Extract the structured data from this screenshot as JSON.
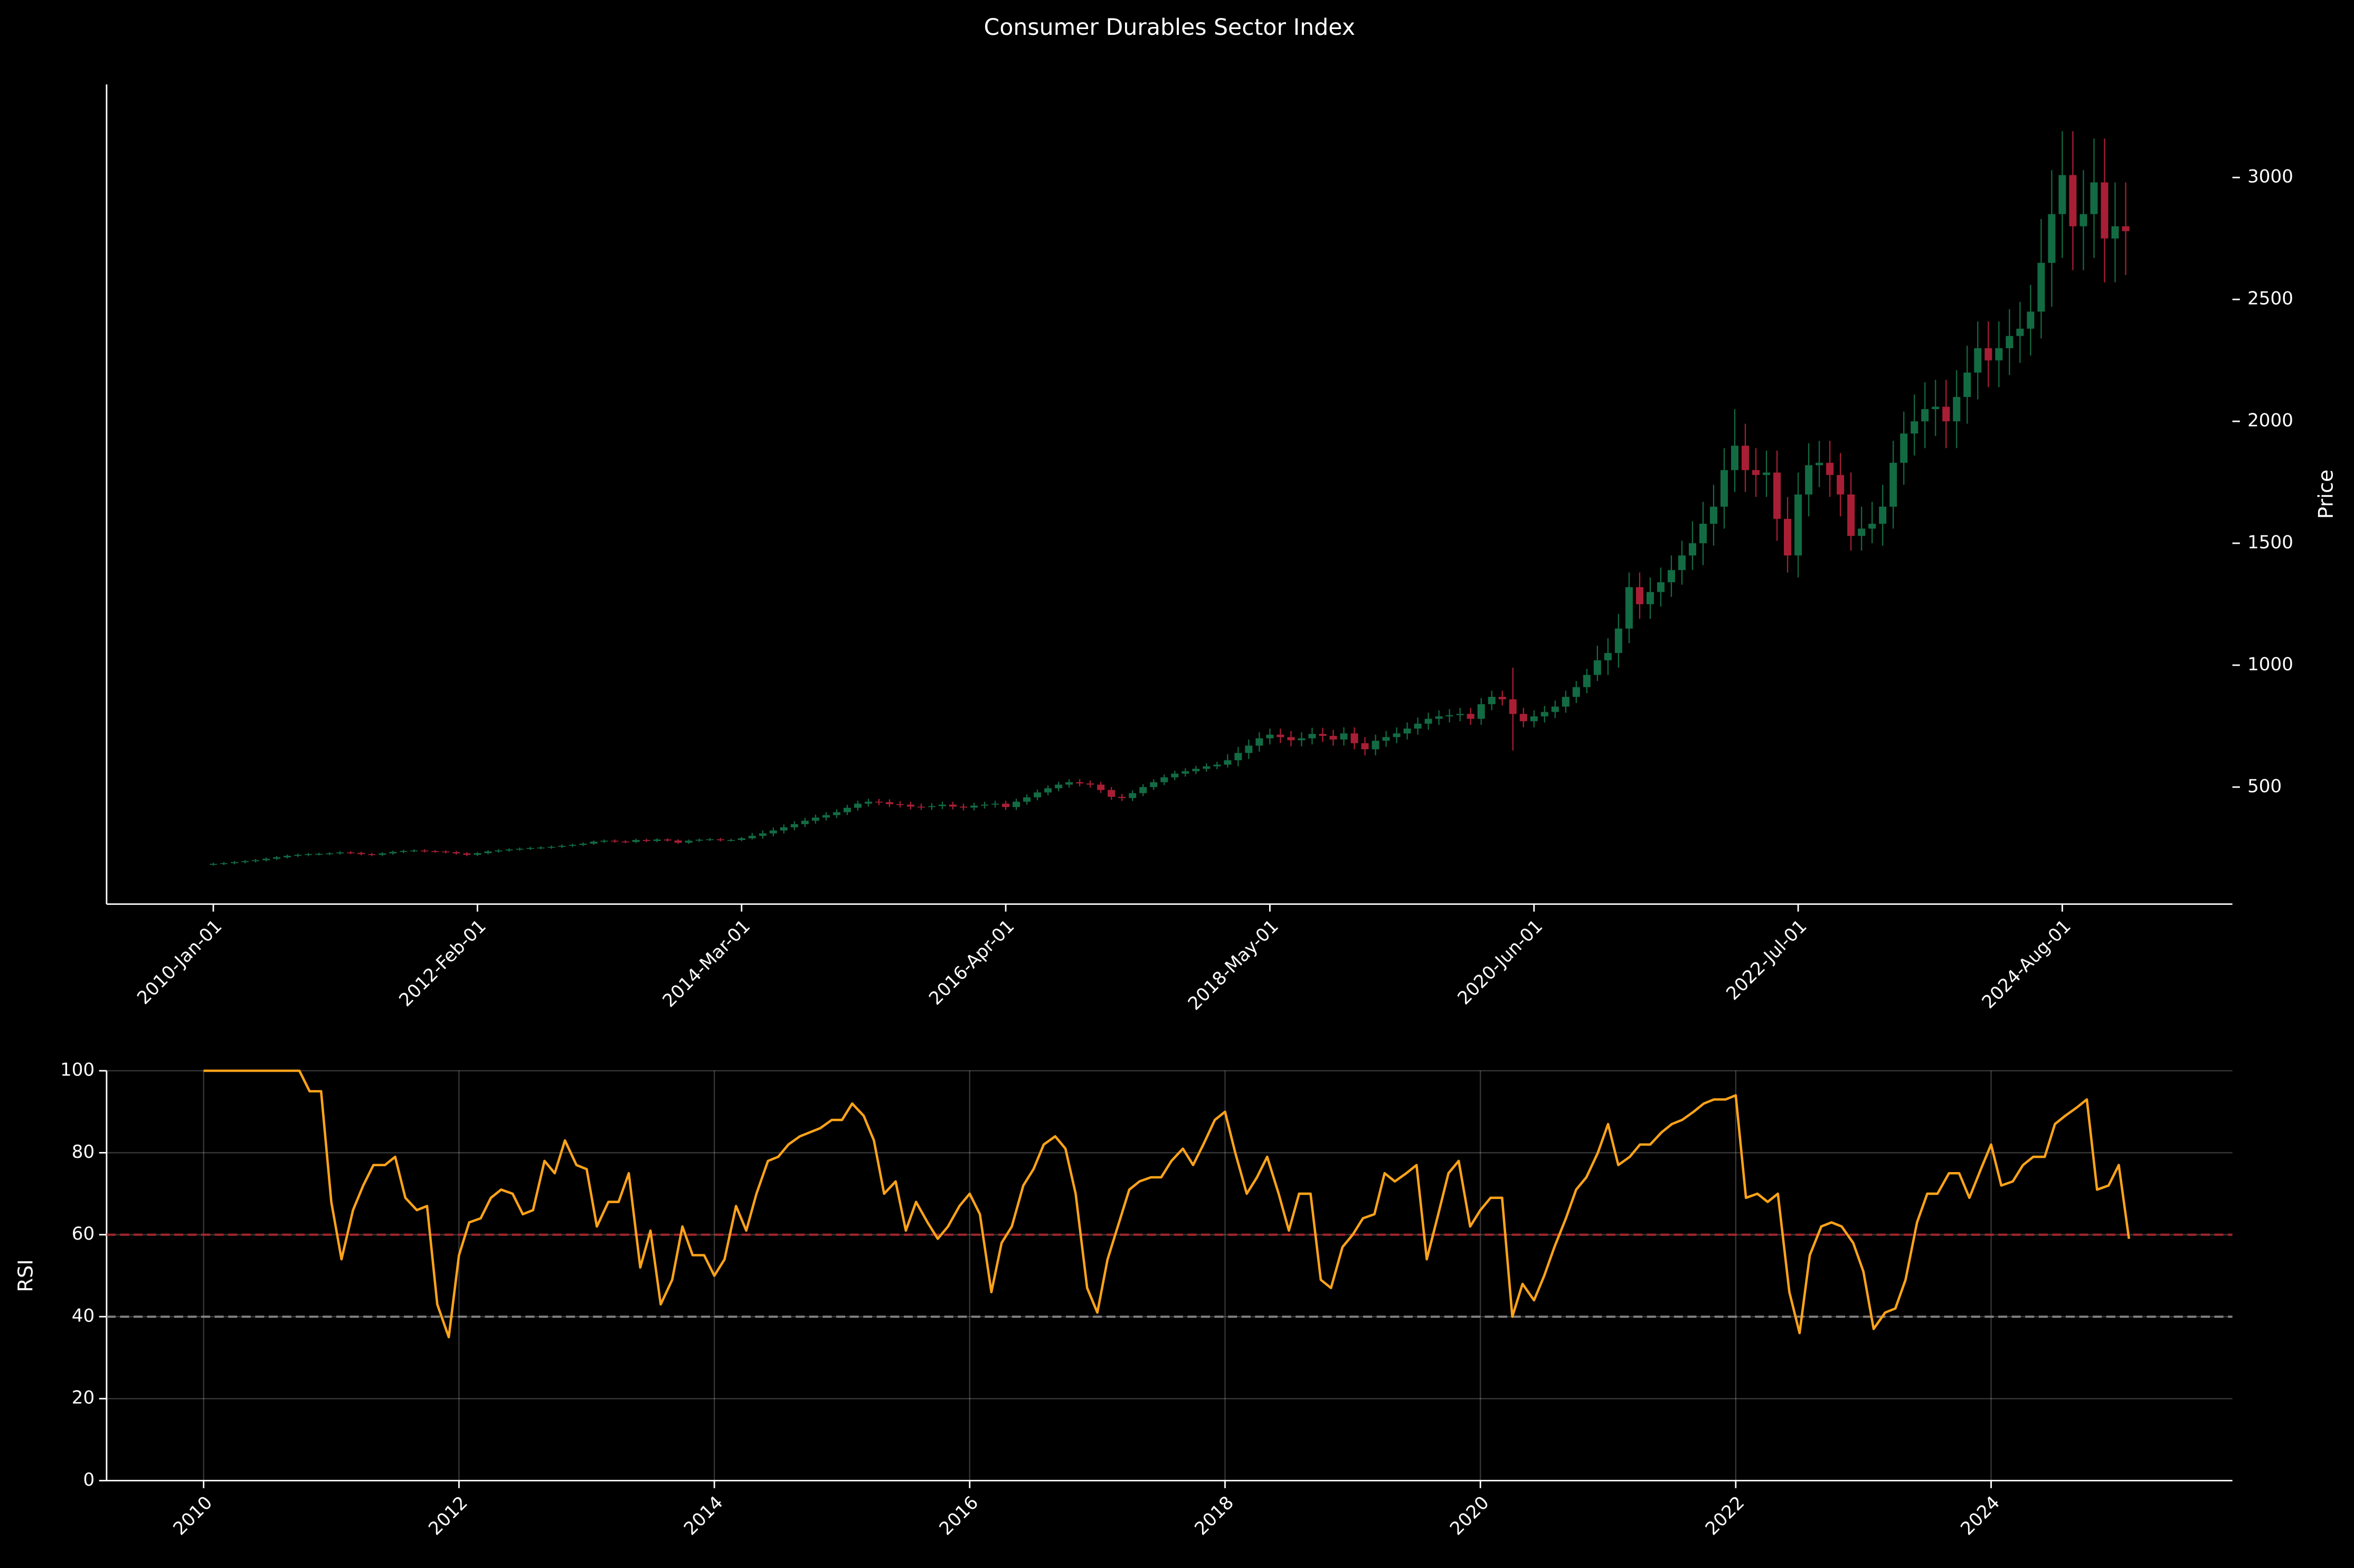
{
  "chart_data": [
    {
      "type": "candlestick",
      "title": "Consumer Durables Sector Index",
      "ylabel": "Price",
      "yaxis_side": "right",
      "up_color": "#136b43",
      "down_color": "#a81f35",
      "ylim": [
        20,
        3382
      ],
      "yticks": [
        500,
        1000,
        1500,
        2000,
        2500,
        3000
      ],
      "categories": [
        "2010-Jan-01",
        null,
        null,
        null,
        null,
        null,
        null,
        null,
        null,
        null,
        null,
        null,
        null,
        null,
        null,
        null,
        null,
        null,
        null,
        null,
        null,
        null,
        null,
        null,
        null,
        "2012-Feb-01",
        null,
        null,
        null,
        null,
        null,
        null,
        null,
        null,
        null,
        null,
        null,
        null,
        null,
        null,
        null,
        null,
        null,
        null,
        null,
        null,
        null,
        null,
        null,
        null,
        "2014-Mar-01",
        null,
        null,
        null,
        null,
        null,
        null,
        null,
        null,
        null,
        null,
        null,
        null,
        null,
        null,
        null,
        null,
        null,
        null,
        null,
        null,
        null,
        null,
        null,
        null,
        "2016-Apr-01",
        null,
        null,
        null,
        null,
        null,
        null,
        null,
        null,
        null,
        null,
        null,
        null,
        null,
        null,
        null,
        null,
        null,
        null,
        null,
        null,
        null,
        null,
        null,
        null,
        "2018-May-01",
        null,
        null,
        null,
        null,
        null,
        null,
        null,
        null,
        null,
        null,
        null,
        null,
        null,
        null,
        null,
        null,
        null,
        null,
        null,
        null,
        null,
        null,
        null,
        null,
        "2020-Jun-01",
        null,
        null,
        null,
        null,
        null,
        null,
        null,
        null,
        null,
        null,
        null,
        null,
        null,
        null,
        null,
        null,
        null,
        null,
        null,
        null,
        null,
        null,
        null,
        null,
        "2022-Jul-01",
        null,
        null,
        null,
        null,
        null,
        null,
        null,
        null,
        null,
        null,
        null,
        null,
        null,
        null,
        null,
        null,
        null,
        null,
        null,
        null,
        null,
        null,
        null,
        null,
        "2024-Aug-01",
        null,
        null,
        null,
        null,
        null,
        null
      ],
      "open": [
        183,
        185,
        188,
        192,
        196,
        200,
        206,
        212,
        218,
        222,
        225,
        226,
        228,
        232,
        230,
        225,
        222,
        228,
        234,
        238,
        240,
        237,
        236,
        233,
        228,
        222,
        229,
        236,
        240,
        244,
        247,
        250,
        252,
        255,
        259,
        263,
        268,
        276,
        280,
        277,
        275,
        283,
        279,
        285,
        281,
        272,
        280,
        284,
        286,
        282,
        283,
        290,
        300,
        310,
        322,
        335,
        348,
        362,
        375,
        385,
        397,
        415,
        432,
        440,
        438,
        430,
        428,
        420,
        418,
        422,
        428,
        420,
        416,
        424,
        428,
        432,
        418,
        440,
        458,
        478,
        495,
        510,
        520,
        515,
        510,
        488,
        460,
        455,
        475,
        500,
        520,
        540,
        555,
        565,
        575,
        585,
        592,
        610,
        640,
        670,
        700,
        715,
        705,
        692,
        700,
        718,
        710,
        695,
        720,
        680,
        655,
        690,
        705,
        720,
        740,
        760,
        780,
        790,
        795,
        800,
        780,
        840,
        870,
        860,
        800,
        770,
        790,
        808,
        830,
        870,
        910,
        960,
        1020,
        1050,
        1150,
        1320,
        1250,
        1300,
        1340,
        1390,
        1450,
        1500,
        1580,
        1650,
        1800,
        1900,
        1800,
        1780,
        1790,
        1600,
        1450,
        1700,
        1820,
        1830,
        1780,
        1700,
        1530,
        1560,
        1580,
        1650,
        1830,
        1950,
        2000,
        2050,
        2060,
        2000,
        2100,
        2200,
        2300,
        2250,
        2300,
        2350,
        2380,
        2450,
        2650,
        2850,
        3010,
        2800,
        2850,
        2980,
        2750,
        2800
      ],
      "high": [
        190,
        193,
        197,
        201,
        205,
        211,
        217,
        223,
        227,
        230,
        231,
        233,
        237,
        237,
        235,
        230,
        233,
        239,
        243,
        245,
        245,
        242,
        241,
        238,
        233,
        234,
        241,
        245,
        249,
        252,
        255,
        257,
        260,
        264,
        268,
        273,
        281,
        285,
        285,
        282,
        288,
        288,
        290,
        290,
        286,
        285,
        289,
        291,
        291,
        288,
        295,
        312,
        322,
        334,
        347,
        360,
        374,
        387,
        397,
        409,
        427,
        444,
        452,
        452,
        450,
        442,
        440,
        432,
        434,
        440,
        440,
        432,
        436,
        440,
        444,
        444,
        452,
        470,
        490,
        507,
        522,
        532,
        532,
        527,
        522,
        500,
        472,
        487,
        512,
        532,
        552,
        567,
        577,
        587,
        597,
        604,
        635,
        665,
        695,
        725,
        740,
        740,
        730,
        725,
        743,
        743,
        735,
        745,
        745,
        705,
        715,
        730,
        745,
        765,
        785,
        805,
        815,
        820,
        825,
        825,
        865,
        895,
        895,
        990,
        825,
        815,
        833,
        855,
        895,
        935,
        985,
        1080,
        1110,
        1210,
        1380,
        1380,
        1360,
        1400,
        1450,
        1510,
        1590,
        1670,
        1740,
        1890,
        2050,
        1990,
        1890,
        1880,
        1880,
        1690,
        1790,
        1910,
        1920,
        1920,
        1870,
        1790,
        1650,
        1670,
        1740,
        1920,
        2040,
        2110,
        2160,
        2170,
        2170,
        2210,
        2310,
        2410,
        2410,
        2410,
        2460,
        2490,
        2560,
        2830,
        3030,
        3190,
        3190,
        3030,
        3160,
        3160,
        2980,
        2980
      ],
      "low": [
        178,
        180,
        183,
        187,
        191,
        195,
        201,
        207,
        213,
        217,
        220,
        221,
        223,
        225,
        220,
        217,
        217,
        223,
        229,
        233,
        232,
        231,
        228,
        223,
        217,
        217,
        224,
        231,
        235,
        239,
        242,
        245,
        247,
        250,
        254,
        258,
        263,
        271,
        272,
        270,
        270,
        274,
        274,
        276,
        267,
        267,
        275,
        279,
        277,
        277,
        278,
        285,
        288,
        298,
        310,
        323,
        336,
        350,
        363,
        373,
        385,
        403,
        420,
        426,
        418,
        416,
        408,
        406,
        406,
        410,
        408,
        404,
        404,
        412,
        416,
        406,
        406,
        428,
        446,
        466,
        483,
        498,
        503,
        498,
        476,
        448,
        443,
        443,
        463,
        488,
        508,
        528,
        543,
        553,
        563,
        573,
        580,
        585,
        615,
        645,
        675,
        680,
        667,
        667,
        675,
        685,
        670,
        670,
        655,
        630,
        630,
        665,
        680,
        695,
        715,
        735,
        755,
        765,
        770,
        755,
        755,
        815,
        835,
        650,
        745,
        745,
        765,
        783,
        805,
        845,
        885,
        935,
        960,
        990,
        1090,
        1190,
        1190,
        1240,
        1280,
        1330,
        1390,
        1410,
        1490,
        1560,
        1710,
        1710,
        1690,
        1690,
        1510,
        1380,
        1360,
        1610,
        1730,
        1690,
        1610,
        1470,
        1470,
        1500,
        1490,
        1560,
        1740,
        1860,
        1890,
        1940,
        1890,
        1890,
        1990,
        2090,
        2140,
        2140,
        2190,
        2240,
        2270,
        2340,
        2470,
        2670,
        2620,
        2620,
        2670,
        2570,
        2570,
        2600
      ],
      "close": [
        185,
        188,
        192,
        196,
        200,
        206,
        212,
        218,
        222,
        225,
        226,
        228,
        232,
        230,
        225,
        222,
        228,
        234,
        238,
        240,
        237,
        236,
        233,
        228,
        222,
        229,
        236,
        240,
        244,
        247,
        250,
        252,
        255,
        259,
        263,
        268,
        276,
        280,
        277,
        275,
        283,
        279,
        285,
        281,
        272,
        280,
        284,
        286,
        282,
        283,
        290,
        300,
        310,
        322,
        335,
        348,
        362,
        375,
        385,
        397,
        415,
        432,
        440,
        438,
        430,
        428,
        420,
        418,
        422,
        428,
        420,
        416,
        424,
        428,
        432,
        418,
        440,
        458,
        478,
        495,
        510,
        520,
        515,
        510,
        488,
        460,
        455,
        475,
        500,
        520,
        540,
        555,
        565,
        575,
        585,
        592,
        610,
        640,
        670,
        700,
        715,
        705,
        692,
        700,
        718,
        710,
        695,
        720,
        680,
        655,
        690,
        705,
        720,
        740,
        760,
        780,
        790,
        795,
        800,
        780,
        840,
        870,
        860,
        800,
        770,
        790,
        808,
        830,
        870,
        910,
        960,
        1020,
        1050,
        1150,
        1320,
        1250,
        1300,
        1340,
        1390,
        1450,
        1500,
        1580,
        1650,
        1800,
        1900,
        1800,
        1780,
        1790,
        1600,
        1450,
        1700,
        1820,
        1830,
        1780,
        1700,
        1530,
        1560,
        1580,
        1650,
        1830,
        1950,
        2000,
        2050,
        2060,
        2000,
        2100,
        2200,
        2300,
        2250,
        2300,
        2350,
        2380,
        2450,
        2650,
        2850,
        3010,
        2800,
        2850,
        2980,
        2750,
        2800,
        2780
      ]
    },
    {
      "type": "line",
      "ylabel": "RSI",
      "color": "#ffa31a",
      "grid": true,
      "xlim": [
        2009.24,
        2025.89
      ],
      "xticks": [
        2010,
        2012,
        2014,
        2016,
        2018,
        2020,
        2022,
        2024
      ],
      "ylim": [
        0,
        100
      ],
      "yticks": [
        0,
        20,
        40,
        60,
        80,
        100
      ],
      "reference_lines": [
        {
          "value": 60,
          "color": "#b3262a"
        },
        {
          "value": 40,
          "color": "#8c8c8c"
        }
      ],
      "x": [
        2010,
        2010.08,
        2010.17,
        2010.25,
        2010.33,
        2010.42,
        2010.5,
        2010.58,
        2010.67,
        2010.75,
        2010.83,
        2010.92,
        2011,
        2011.08,
        2011.17,
        2011.25,
        2011.33,
        2011.42,
        2011.5,
        2011.58,
        2011.67,
        2011.75,
        2011.83,
        2011.92,
        2012,
        2012.08,
        2012.17,
        2012.25,
        2012.33,
        2012.42,
        2012.5,
        2012.58,
        2012.67,
        2012.75,
        2012.83,
        2012.92,
        2013,
        2013.08,
        2013.17,
        2013.25,
        2013.33,
        2013.42,
        2013.5,
        2013.58,
        2013.67,
        2013.75,
        2013.83,
        2013.92,
        2014,
        2014.08,
        2014.17,
        2014.25,
        2014.33,
        2014.42,
        2014.5,
        2014.58,
        2014.67,
        2014.75,
        2014.83,
        2014.92,
        2015,
        2015.08,
        2015.17,
        2015.25,
        2015.33,
        2015.42,
        2015.5,
        2015.58,
        2015.67,
        2015.75,
        2015.83,
        2015.92,
        2016,
        2016.08,
        2016.17,
        2016.25,
        2016.33,
        2016.42,
        2016.5,
        2016.58,
        2016.67,
        2016.75,
        2016.83,
        2016.92,
        2017,
        2017.08,
        2017.17,
        2017.25,
        2017.33,
        2017.42,
        2017.5,
        2017.58,
        2017.67,
        2017.75,
        2017.83,
        2017.92,
        2018,
        2018.08,
        2018.17,
        2018.25,
        2018.33,
        2018.42,
        2018.5,
        2018.58,
        2018.67,
        2018.75,
        2018.83,
        2018.92,
        2019,
        2019.08,
        2019.17,
        2019.25,
        2019.33,
        2019.42,
        2019.5,
        2019.58,
        2019.67,
        2019.75,
        2019.83,
        2019.92,
        2020,
        2020.08,
        2020.17,
        2020.25,
        2020.33,
        2020.42,
        2020.5,
        2020.58,
        2020.67,
        2020.75,
        2020.83,
        2020.92,
        2021,
        2021.08,
        2021.17,
        2021.25,
        2021.33,
        2021.42,
        2021.5,
        2021.58,
        2021.67,
        2021.75,
        2021.83,
        2021.92,
        2022,
        2022.08,
        2022.17,
        2022.25,
        2022.33,
        2022.42,
        2022.5,
        2022.58,
        2022.67,
        2022.75,
        2022.83,
        2022.92,
        2023,
        2023.08,
        2023.17,
        2023.25,
        2023.33,
        2023.42,
        2023.5,
        2023.58,
        2023.67,
        2023.75,
        2023.83,
        2023.92,
        2024,
        2024.08,
        2024.17,
        2024.25,
        2024.33,
        2024.42,
        2024.5,
        2024.58,
        2024.67,
        2024.75,
        2024.83,
        2024.92,
        2025,
        2025.08
      ],
      "values": [
        100,
        100,
        100,
        100,
        100,
        100,
        100,
        100,
        100,
        100,
        95,
        95,
        68,
        54,
        66,
        72,
        77,
        77,
        79,
        69,
        66,
        67,
        43,
        35,
        55,
        63,
        64,
        69,
        71,
        70,
        65,
        66,
        78,
        75,
        83,
        77,
        76,
        62,
        68,
        68,
        75,
        52,
        61,
        43,
        49,
        62,
        55,
        55,
        50,
        54,
        67,
        61,
        70,
        78,
        79,
        82,
        84,
        85,
        86,
        88,
        88,
        92,
        89,
        83,
        70,
        73,
        61,
        68,
        63,
        59,
        62,
        67,
        70,
        65,
        46,
        58,
        62,
        72,
        76,
        82,
        84,
        81,
        70,
        47,
        41,
        54,
        63,
        71,
        73,
        74,
        74,
        78,
        81,
        77,
        82,
        88,
        90,
        80,
        70,
        74,
        79,
        70,
        61,
        70,
        70,
        49,
        47,
        57,
        60,
        64,
        65,
        75,
        73,
        75,
        77,
        54,
        65,
        75,
        78,
        62,
        66,
        69,
        69,
        40,
        48,
        44,
        50,
        57,
        64,
        71,
        74,
        80,
        87,
        77,
        79,
        82,
        82,
        85,
        87,
        88,
        90,
        92,
        93,
        93,
        94,
        69,
        70,
        68,
        70,
        46,
        36,
        55,
        62,
        63,
        62,
        58,
        51,
        37,
        41,
        42,
        49,
        63,
        70,
        70,
        75,
        75,
        69,
        76,
        82,
        72,
        73,
        77,
        79,
        79,
        87,
        89,
        91,
        93,
        71,
        72,
        77,
        59
      ]
    }
  ]
}
